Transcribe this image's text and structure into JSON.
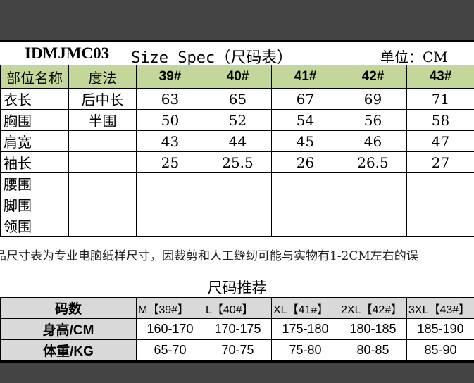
{
  "title": {
    "code": "IDMJMC03",
    "spec": "Size Spec（尺码表）",
    "unit": "单位：CM"
  },
  "spec_table": {
    "headers": [
      "部位名称",
      "度法",
      "39#",
      "40#",
      "41#",
      "42#",
      "43#"
    ],
    "rows": [
      {
        "part": "衣长",
        "method": "后中长",
        "values": [
          "63",
          "65",
          "67",
          "69",
          "71"
        ]
      },
      {
        "part": "胸围",
        "method": "半围",
        "values": [
          "50",
          "52",
          "54",
          "56",
          "58"
        ]
      },
      {
        "part": "肩宽",
        "method": "",
        "values": [
          "43",
          "44",
          "45",
          "46",
          "47"
        ]
      },
      {
        "part": "袖长",
        "method": "",
        "values": [
          "25",
          "25.5",
          "26",
          "26.5",
          "27"
        ]
      },
      {
        "part": "腰围",
        "method": "",
        "values": [
          "",
          "",
          "",
          "",
          ""
        ]
      },
      {
        "part": "脚围",
        "method": "",
        "values": [
          "",
          "",
          "",
          "",
          ""
        ]
      },
      {
        "part": "领围",
        "method": "",
        "values": [
          "",
          "",
          "",
          "",
          ""
        ]
      }
    ]
  },
  "note": "品尺寸表为专业电脑纸样尺寸，因裁剪和人工缝纫可能与实物有1-2CM左右的误",
  "recommend": {
    "title": "尺码推荐",
    "rows": [
      {
        "label": "码数",
        "values": [
          "M【39#】",
          "L【40#】",
          "XL【41#】",
          "2XL【42#】",
          "3XL【43#】"
        ]
      },
      {
        "label": "身高/CM",
        "values": [
          "160-170",
          "170-175",
          "175-180",
          "180-185",
          "185-190"
        ]
      },
      {
        "label": "体重/KG",
        "values": [
          "65-70",
          "70-75",
          "75-80",
          "80-85",
          "85-90"
        ]
      }
    ]
  },
  "colors": {
    "header_green": "#c4d79b",
    "header_gray": "#d9d9d9",
    "band": "#444444"
  }
}
